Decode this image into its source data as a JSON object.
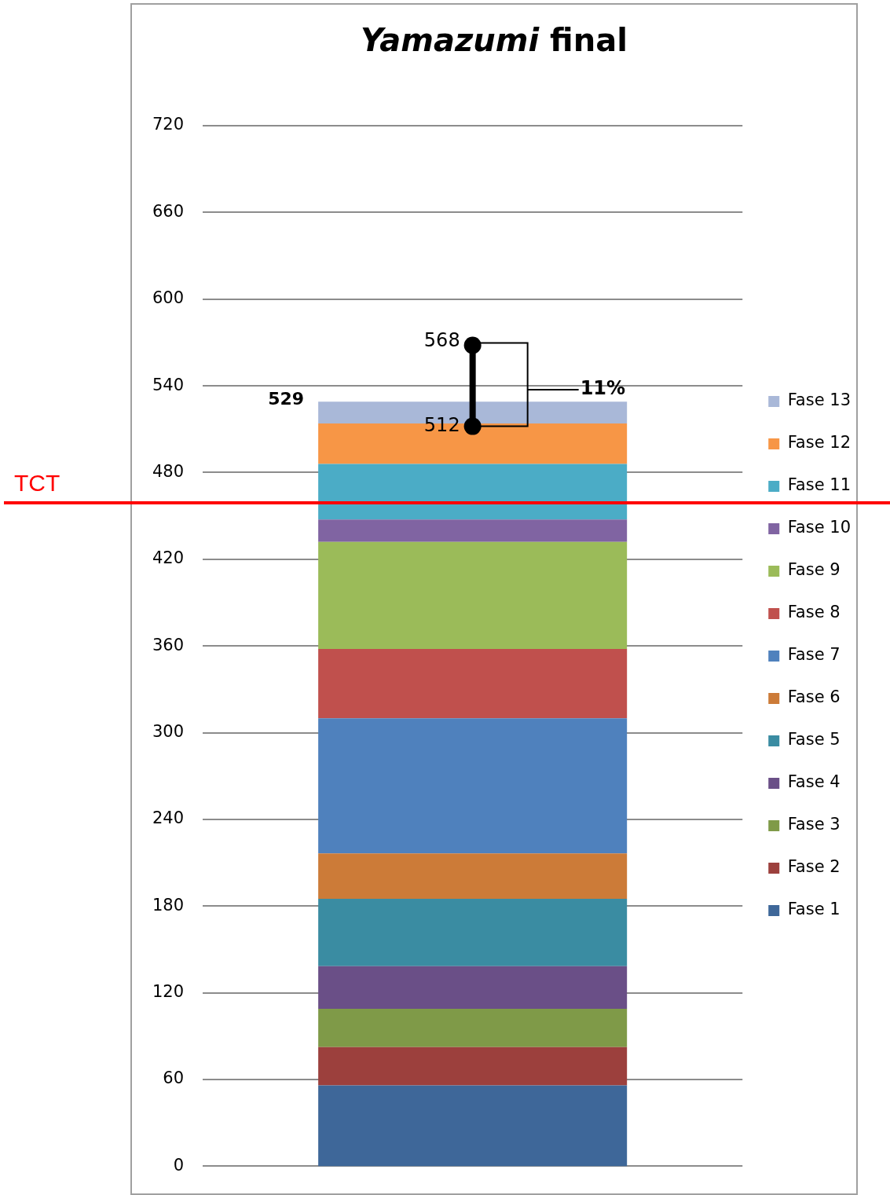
{
  "chart_data": {
    "type": "bar",
    "title": "Yamazumi final",
    "categories": [
      null
    ],
    "stacked": true,
    "series": [
      {
        "name": "Fase 1",
        "color": "#3e6799",
        "values": [
          56
        ]
      },
      {
        "name": "Fase 2",
        "color": "#9c403d",
        "values": [
          26.5
        ]
      },
      {
        "name": "Fase 3",
        "color": "#7f9a48",
        "values": [
          26.5
        ]
      },
      {
        "name": "Fase 4",
        "color": "#6a4f87",
        "values": [
          29.5
        ]
      },
      {
        "name": "Fase 5",
        "color": "#3a8ca2",
        "values": [
          46.5
        ]
      },
      {
        "name": "Fase 6",
        "color": "#cc7b38",
        "values": [
          31.5
        ]
      },
      {
        "name": "Fase 7",
        "color": "#4f81bd",
        "values": [
          93.5
        ]
      },
      {
        "name": "Fase 8",
        "color": "#c0504d",
        "values": [
          48
        ]
      },
      {
        "name": "Fase 9",
        "color": "#9bbb59",
        "values": [
          74
        ]
      },
      {
        "name": "Fase 10",
        "color": "#8064a2",
        "values": [
          15.5
        ]
      },
      {
        "name": "Fase 11",
        "color": "#4bacc6",
        "values": [
          38.5
        ]
      },
      {
        "name": "Fase 12",
        "color": "#f79646",
        "values": [
          28
        ]
      },
      {
        "name": "Fase 13",
        "color": "#a9b8d8",
        "values": [
          15
        ]
      },
      {
        "type": "scatter",
        "color": "#000000",
        "values": [
          568
        ],
        "value_labels": [
          "568"
        ]
      },
      {
        "type": "scatter",
        "color": "#000000",
        "values": [
          512
        ],
        "value_labels": [
          "512"
        ]
      }
    ],
    "marker": "circle",
    "totals": [
      "529"
    ],
    "ylim": [
      0,
      720
    ],
    "yticks": [
      0,
      60,
      120,
      180,
      240,
      300,
      360,
      420,
      480,
      540,
      600,
      660,
      720
    ],
    "grid": "y",
    "legend": "right",
    "tick_labels": "y",
    "ref_lines": [
      {
        "axis": "y",
        "value": 459,
        "label": "TCT",
        "color": "#ff0000"
      }
    ],
    "annotations": [
      "11%"
    ]
  }
}
